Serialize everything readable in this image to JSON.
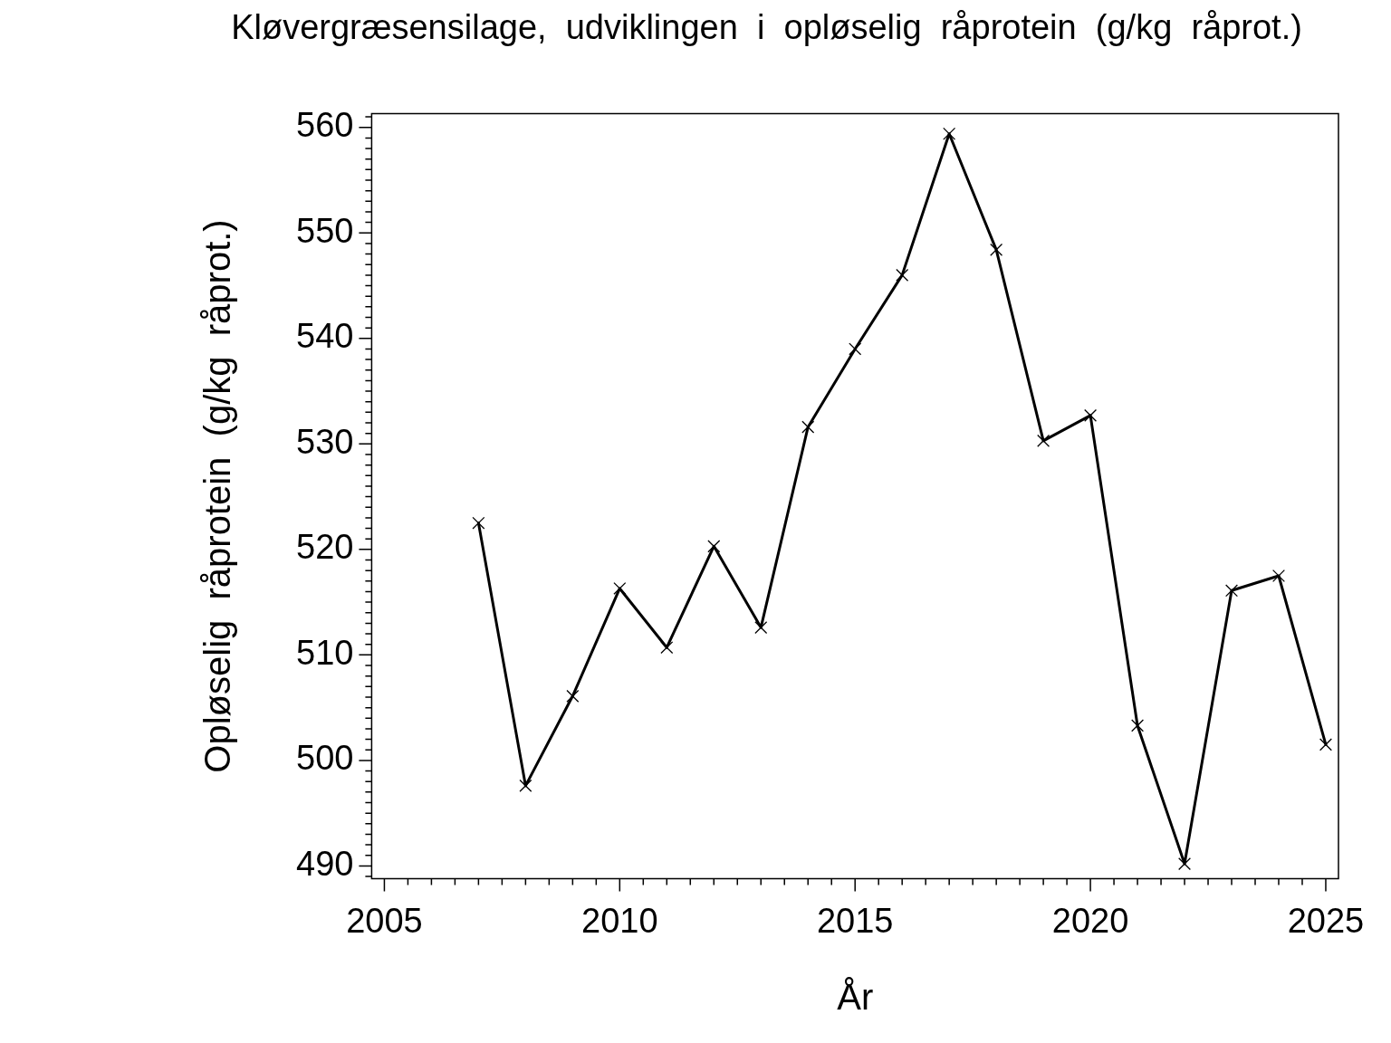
{
  "chart_data": {
    "type": "line",
    "title": "Kløvergræsensilage,  udviklingen  i  opløselig  råprotein  (g/kg  råprot.)",
    "xlabel": "År",
    "ylabel": "Opløselig  råprotein  (g/kg  råprot.)",
    "x": [
      2007,
      2008,
      2009,
      2010,
      2011,
      2012,
      2013,
      2014,
      2015,
      2016,
      2017,
      2018,
      2019,
      2020,
      2021,
      2022,
      2023,
      2024,
      2025
    ],
    "series": [
      {
        "color": "#000000",
        "values": [
          522.5,
          497.6,
          506.1,
          516.3,
          510.7,
          520.3,
          512.6,
          531.6,
          539.0,
          546.0,
          559.4,
          548.4,
          530.3,
          532.7,
          503.3,
          490.2,
          516.1,
          517.5,
          501.5
        ]
      }
    ],
    "marker": "cross",
    "line_style": "solid",
    "grid": false,
    "legend": false,
    "xlim": [
      2004.73,
      2025.27
    ],
    "ylim": [
      488.8,
      561.3
    ],
    "xticks": [
      {
        "value": 2005,
        "label": "2005"
      },
      {
        "value": 2005.5,
        "label": null
      },
      {
        "value": 2006,
        "label": null
      },
      {
        "value": 2006.5,
        "label": null
      },
      {
        "value": 2007,
        "label": null
      },
      {
        "value": 2007.5,
        "label": null
      },
      {
        "value": 2008,
        "label": null
      },
      {
        "value": 2008.5,
        "label": null
      },
      {
        "value": 2009,
        "label": null
      },
      {
        "value": 2009.5,
        "label": null
      },
      {
        "value": 2010,
        "label": "2010"
      },
      {
        "value": 2010.5,
        "label": null
      },
      {
        "value": 2011,
        "label": null
      },
      {
        "value": 2011.5,
        "label": null
      },
      {
        "value": 2012,
        "label": null
      },
      {
        "value": 2012.5,
        "label": null
      },
      {
        "value": 2013,
        "label": null
      },
      {
        "value": 2013.5,
        "label": null
      },
      {
        "value": 2014,
        "label": null
      },
      {
        "value": 2014.5,
        "label": null
      },
      {
        "value": 2015,
        "label": "2015"
      },
      {
        "value": 2015.5,
        "label": null
      },
      {
        "value": 2016,
        "label": null
      },
      {
        "value": 2016.5,
        "label": null
      },
      {
        "value": 2017,
        "label": null
      },
      {
        "value": 2017.5,
        "label": null
      },
      {
        "value": 2018,
        "label": null
      },
      {
        "value": 2018.5,
        "label": null
      },
      {
        "value": 2019,
        "label": null
      },
      {
        "value": 2019.5,
        "label": null
      },
      {
        "value": 2020,
        "label": "2020"
      },
      {
        "value": 2020.5,
        "label": null
      },
      {
        "value": 2021,
        "label": null
      },
      {
        "value": 2021.5,
        "label": null
      },
      {
        "value": 2022,
        "label": null
      },
      {
        "value": 2022.5,
        "label": null
      },
      {
        "value": 2023,
        "label": null
      },
      {
        "value": 2023.5,
        "label": null
      },
      {
        "value": 2024,
        "label": null
      },
      {
        "value": 2024.5,
        "label": null
      },
      {
        "value": 2025,
        "label": "2025"
      }
    ],
    "yticks": [
      {
        "value": 489,
        "label": null
      },
      490,
      {
        "value": 491,
        "label": null
      },
      {
        "value": 492,
        "label": null
      },
      {
        "value": 493,
        "label": null
      },
      {
        "value": 494,
        "label": null
      },
      {
        "value": 495,
        "label": null
      },
      {
        "value": 496,
        "label": null
      },
      {
        "value": 497,
        "label": null
      },
      {
        "value": 498,
        "label": null
      },
      {
        "value": 499,
        "label": null
      },
      500,
      {
        "value": 501,
        "label": null
      },
      {
        "value": 502,
        "label": null
      },
      {
        "value": 503,
        "label": null
      },
      {
        "value": 504,
        "label": null
      },
      {
        "value": 505,
        "label": null
      },
      {
        "value": 506,
        "label": null
      },
      {
        "value": 507,
        "label": null
      },
      {
        "value": 508,
        "label": null
      },
      {
        "value": 509,
        "label": null
      },
      510,
      {
        "value": 511,
        "label": null
      },
      {
        "value": 512,
        "label": null
      },
      {
        "value": 513,
        "label": null
      },
      {
        "value": 514,
        "label": null
      },
      {
        "value": 515,
        "label": null
      },
      {
        "value": 516,
        "label": null
      },
      {
        "value": 517,
        "label": null
      },
      {
        "value": 518,
        "label": null
      },
      {
        "value": 519,
        "label": null
      },
      520,
      {
        "value": 521,
        "label": null
      },
      {
        "value": 522,
        "label": null
      },
      {
        "value": 523,
        "label": null
      },
      {
        "value": 524,
        "label": null
      },
      {
        "value": 525,
        "label": null
      },
      {
        "value": 526,
        "label": null
      },
      {
        "value": 527,
        "label": null
      },
      {
        "value": 528,
        "label": null
      },
      {
        "value": 529,
        "label": null
      },
      530,
      {
        "value": 531,
        "label": null
      },
      {
        "value": 532,
        "label": null
      },
      {
        "value": 533,
        "label": null
      },
      {
        "value": 534,
        "label": null
      },
      {
        "value": 535,
        "label": null
      },
      {
        "value": 536,
        "label": null
      },
      {
        "value": 537,
        "label": null
      },
      {
        "value": 538,
        "label": null
      },
      {
        "value": 539,
        "label": null
      },
      540,
      {
        "value": 541,
        "label": null
      },
      {
        "value": 542,
        "label": null
      },
      {
        "value": 543,
        "label": null
      },
      {
        "value": 544,
        "label": null
      },
      {
        "value": 545,
        "label": null
      },
      {
        "value": 546,
        "label": null
      },
      {
        "value": 547,
        "label": null
      },
      {
        "value": 548,
        "label": null
      },
      {
        "value": 549,
        "label": null
      },
      550,
      {
        "value": 551,
        "label": null
      },
      {
        "value": 552,
        "label": null
      },
      {
        "value": 553,
        "label": null
      },
      {
        "value": 554,
        "label": null
      },
      {
        "value": 555,
        "label": null
      },
      {
        "value": 556,
        "label": null
      },
      {
        "value": 557,
        "label": null
      },
      {
        "value": 558,
        "label": null
      },
      {
        "value": 559,
        "label": null
      },
      560,
      {
        "value": 561,
        "label": null
      }
    ]
  }
}
